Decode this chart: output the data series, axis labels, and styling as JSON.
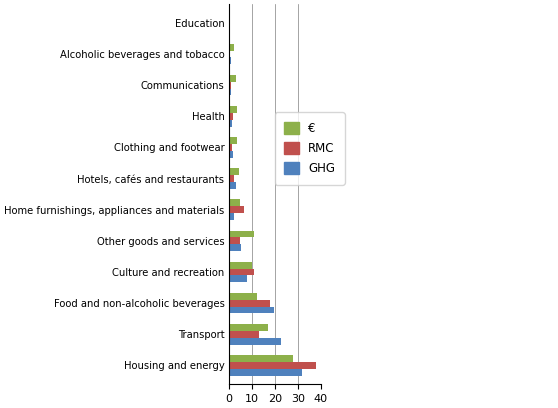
{
  "categories": [
    "Housing and energy",
    "Transport",
    "Food and non-alcoholic beverages",
    "Culture and recreation",
    "Other goods and services",
    "Home furnishings, appliances and materials",
    "Hotels, cafés and restaurants",
    "Clothing and footwear",
    "Health",
    "Communications",
    "Alcoholic beverages and tobacco",
    "Education"
  ],
  "euro": [
    28.0,
    17.0,
    12.5,
    10.0,
    11.0,
    5.0,
    4.5,
    3.5,
    3.5,
    3.0,
    2.5,
    0.0
  ],
  "rmc": [
    38.0,
    13.0,
    18.0,
    11.0,
    5.0,
    6.5,
    2.5,
    1.5,
    2.0,
    1.0,
    0.5,
    0.0
  ],
  "ghg": [
    32.0,
    22.5,
    19.5,
    8.0,
    5.5,
    2.5,
    3.0,
    2.0,
    1.5,
    1.0,
    1.0,
    0.0
  ],
  "color_euro": "#8DB04A",
  "color_rmc": "#C0504D",
  "color_ghg": "#4F81BD",
  "background": "#FFFFFF",
  "xlim": [
    0,
    40
  ],
  "xticks": [
    0,
    10,
    20,
    30,
    40
  ],
  "bar_height": 0.22,
  "figsize": [
    5.58,
    4.08
  ],
  "dpi": 100
}
